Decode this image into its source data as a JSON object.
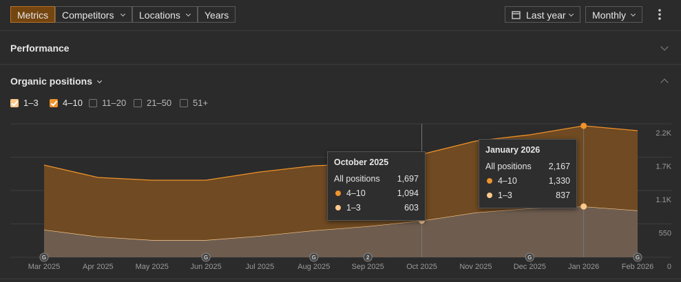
{
  "toolbar": {
    "tabs": [
      "Metrics",
      "Competitors",
      "Locations",
      "Years"
    ],
    "period": "Last year",
    "interval": "Monthly"
  },
  "sections": {
    "performance": "Performance",
    "organic": "Organic positions"
  },
  "inactive_series": [
    "11–20",
    "21–50",
    "51+"
  ],
  "chart_data": {
    "type": "stacked-area",
    "categories": [
      "Mar 2025",
      "Apr 2025",
      "May 2025",
      "Jun 2025",
      "Jul 2025",
      "Aug 2025",
      "Sep 2025",
      "Oct 2025",
      "Nov 2025",
      "Dec 2025",
      "Jan 2026",
      "Feb 2026"
    ],
    "series": [
      {
        "name": "1–3",
        "color": "#ffc98b",
        "fill": "#6e5d4f",
        "values": [
          454,
          340,
          283,
          283,
          352,
          442,
          510,
          603,
          737,
          805,
          837,
          771
        ]
      },
      {
        "name": "4–10",
        "color": "#f0932b",
        "fill": "#6f4a22",
        "values": [
          1066,
          975,
          987,
          987,
          1054,
          1066,
          1032,
          1094,
          1180,
          1214,
          1330,
          1316
        ]
      }
    ],
    "ylim": [
      0,
      2200
    ],
    "yticks": [
      0,
      550,
      {
        "value": 1100,
        "label": "1.1K"
      },
      {
        "value": 1650,
        "label": "1.7K"
      },
      {
        "value": 2200,
        "label": "2.2K"
      }
    ],
    "grid": true,
    "annotations": [
      {
        "category": "Mar 2025",
        "label": "G"
      },
      {
        "category": "Jun 2025",
        "label": "G"
      },
      {
        "category": "Aug 2025",
        "label": "G"
      },
      {
        "category": "Sep 2025",
        "label": "2"
      },
      {
        "category": "Dec 2025",
        "label": "G"
      },
      {
        "category": "Feb 2026",
        "label": "G"
      }
    ],
    "tooltips": [
      {
        "category": "Oct 2025",
        "title": "October 2025",
        "total_label": "All positions",
        "total": "1,697",
        "rows": [
          {
            "name": "4–10",
            "value": "1,094"
          },
          {
            "name": "1–3",
            "value": "603"
          }
        ]
      },
      {
        "category": "Jan 2026",
        "title": "January 2026",
        "total_label": "All positions",
        "total": "2,167",
        "rows": [
          {
            "name": "4–10",
            "value": "1,330"
          },
          {
            "name": "1–3",
            "value": "837"
          }
        ]
      }
    ]
  }
}
